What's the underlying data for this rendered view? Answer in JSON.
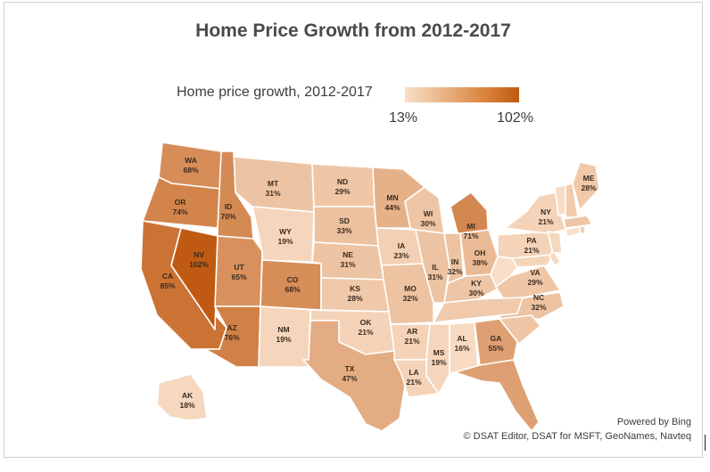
{
  "title": "Home Price Growth from 2012-2017",
  "legend": {
    "title": "Home price growth, 2012-2017",
    "min_label": "13%",
    "max_label": "102%",
    "min_value": 13,
    "max_value": 102,
    "color_low": "#f9dfc8",
    "color_high": "#c05a12"
  },
  "credits": {
    "line1": "Powered by Bing",
    "line2": "© DSAT Editor, DSAT for MSFT, GeoNames, Navteq"
  },
  "chart_data": {
    "type": "choropleth",
    "title": "Home Price Growth from 2012-2017",
    "legend_title": "Home price growth, 2012-2017",
    "range": [
      13,
      102
    ],
    "states": [
      {
        "abbr": "WA",
        "label": "68%",
        "value": 68
      },
      {
        "abbr": "OR",
        "label": "74%",
        "value": 74
      },
      {
        "abbr": "CA",
        "label": "85%",
        "value": 85
      },
      {
        "abbr": "NV",
        "label": "102%",
        "value": 102
      },
      {
        "abbr": "ID",
        "label": "70%",
        "value": 70
      },
      {
        "abbr": "UT",
        "label": "65%",
        "value": 65
      },
      {
        "abbr": "AZ",
        "label": "76%",
        "value": 76
      },
      {
        "abbr": "MT",
        "label": "31%",
        "value": 31
      },
      {
        "abbr": "WY",
        "label": "19%",
        "value": 19
      },
      {
        "abbr": "CO",
        "label": "68%",
        "value": 68
      },
      {
        "abbr": "NM",
        "label": "19%",
        "value": 19
      },
      {
        "abbr": "ND",
        "label": "29%",
        "value": 29
      },
      {
        "abbr": "SD",
        "label": "33%",
        "value": 33
      },
      {
        "abbr": "NE",
        "label": "31%",
        "value": 31
      },
      {
        "abbr": "KS",
        "label": "28%",
        "value": 28
      },
      {
        "abbr": "OK",
        "label": "21%",
        "value": 21
      },
      {
        "abbr": "TX",
        "label": "47%",
        "value": 47
      },
      {
        "abbr": "MN",
        "label": "44%",
        "value": 44
      },
      {
        "abbr": "IA",
        "label": "23%",
        "value": 23
      },
      {
        "abbr": "MO",
        "label": "32%",
        "value": 32
      },
      {
        "abbr": "AR",
        "label": "21%",
        "value": 21
      },
      {
        "abbr": "LA",
        "label": "21%",
        "value": 21
      },
      {
        "abbr": "WI",
        "label": "30%",
        "value": 30
      },
      {
        "abbr": "IL",
        "label": "31%",
        "value": 31
      },
      {
        "abbr": "MS",
        "label": "19%",
        "value": 19
      },
      {
        "abbr": "MI",
        "label": "71%",
        "value": 71
      },
      {
        "abbr": "IN",
        "label": "32%",
        "value": 32
      },
      {
        "abbr": "KY",
        "label": "30%",
        "value": 30
      },
      {
        "abbr": "AL",
        "label": "16%",
        "value": 16
      },
      {
        "abbr": "GA",
        "label": "55%",
        "value": 55
      },
      {
        "abbr": "OH",
        "label": "38%",
        "value": 38
      },
      {
        "abbr": "NC",
        "label": "32%",
        "value": 32
      },
      {
        "abbr": "VA",
        "label": "29%",
        "value": 29
      },
      {
        "abbr": "PA",
        "label": "21%",
        "value": 21
      },
      {
        "abbr": "NY",
        "label": "21%",
        "value": 21
      },
      {
        "abbr": "ME",
        "label": "28%",
        "value": 28
      },
      {
        "abbr": "AK",
        "label": "18%",
        "value": 18
      },
      {
        "abbr": "FL",
        "label": "",
        "value": 55
      },
      {
        "abbr": "TN",
        "label": "",
        "value": 27
      },
      {
        "abbr": "SC",
        "label": "",
        "value": 30
      },
      {
        "abbr": "WV",
        "label": "",
        "value": 14
      },
      {
        "abbr": "MD",
        "label": "",
        "value": 20
      },
      {
        "abbr": "DE",
        "label": "",
        "value": 17
      },
      {
        "abbr": "NJ",
        "label": "",
        "value": 18
      },
      {
        "abbr": "CT",
        "label": "",
        "value": 13
      },
      {
        "abbr": "RI",
        "label": "",
        "value": 24
      },
      {
        "abbr": "MA",
        "label": "",
        "value": 30
      },
      {
        "abbr": "VT",
        "label": "",
        "value": 15
      },
      {
        "abbr": "NH",
        "label": "",
        "value": 26
      }
    ]
  }
}
